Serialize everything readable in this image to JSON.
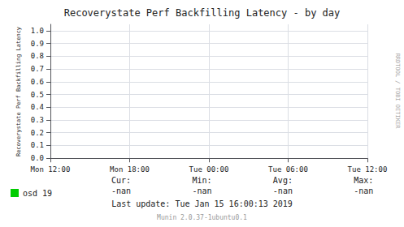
{
  "chart_data": {
    "type": "line",
    "title": "Recoverystate Perf Backfilling Latency - by day",
    "ylabel": "Recoverystate Perf Backfilling Latency",
    "categories": [
      "Mon 12:00",
      "Mon 18:00",
      "Tue 00:00",
      "Tue 06:00",
      "Tue 12:00"
    ],
    "series": [
      {
        "name": "osd 19",
        "color": "#00cc00",
        "values": [
          null,
          null,
          null,
          null,
          null
        ]
      }
    ],
    "ylim": [
      -0.005,
      1.05
    ],
    "yticks": [
      {
        "value": 0.0,
        "label": "0.0"
      },
      {
        "value": 0.1,
        "label": "0.1"
      },
      {
        "value": 0.2,
        "label": "0.2"
      },
      {
        "value": 0.3,
        "label": "0.3"
      },
      {
        "value": 0.4,
        "label": "0.4"
      },
      {
        "value": 0.5,
        "label": "0.5"
      },
      {
        "value": 0.6,
        "label": "0.6"
      },
      {
        "value": 0.7,
        "label": "0.7"
      },
      {
        "value": 0.8,
        "label": "0.8"
      },
      {
        "value": 0.9,
        "label": "0.9"
      },
      {
        "value": 1.0,
        "label": "1.0"
      }
    ],
    "grid": true,
    "legend": "lower left",
    "annotations": [
      "Cur:",
      "-nan",
      "Min:",
      "-nan",
      "Avg:",
      "-nan",
      "Max:",
      "-nan",
      "Last update: Tue Jan 15 16:00:13 2019",
      "Munin 2.0.37-1ubuntu0.1",
      "RRDTOOL / TOBI OETIKER"
    ]
  }
}
